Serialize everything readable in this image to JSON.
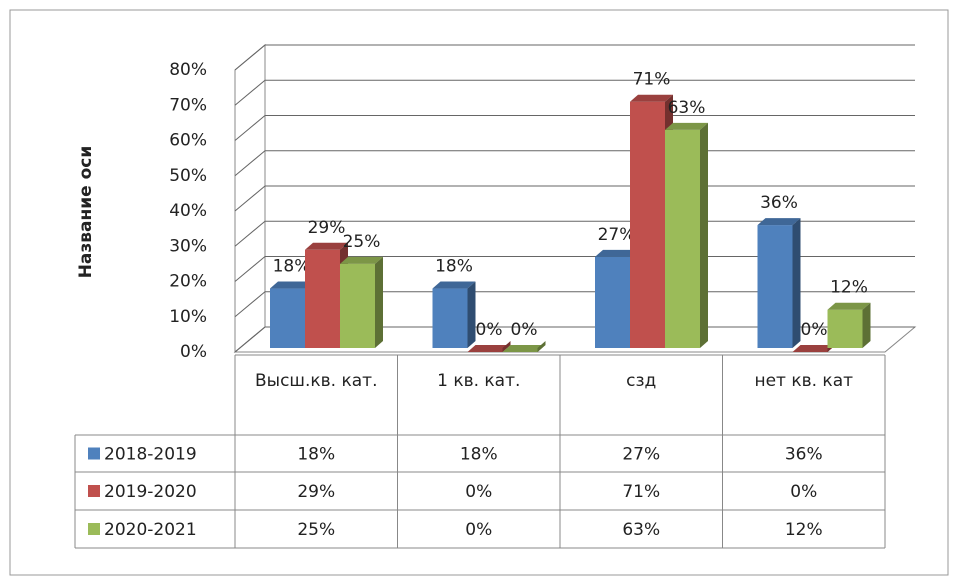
{
  "chart_data": {
    "type": "bar3d",
    "ylabel": "Название оси",
    "categories": [
      "Высш.кв. кат.",
      "1 кв. кат.",
      "сзд",
      "нет кв. кат"
    ],
    "series": [
      {
        "name": "2018-2019",
        "color": "#4f81bd",
        "values": [
          18,
          18,
          27,
          36
        ],
        "value_labels": [
          "18%",
          "18%",
          "27%",
          "36%"
        ]
      },
      {
        "name": "2019-2020",
        "color": "#c0504d",
        "values": [
          29,
          0,
          71,
          0
        ],
        "value_labels": [
          "29%",
          "0%",
          "71%",
          "0%"
        ]
      },
      {
        "name": "2020-2021",
        "color": "#9bbb59",
        "values": [
          25,
          0,
          63,
          12
        ],
        "value_labels": [
          "25%",
          "0%",
          "63%",
          "12%"
        ]
      }
    ],
    "ylim": [
      0,
      80
    ],
    "yticks": [
      {
        "value": 0,
        "label": "0%"
      },
      {
        "value": 10,
        "label": "10%"
      },
      {
        "value": 20,
        "label": "20%"
      },
      {
        "value": 30,
        "label": "30%"
      },
      {
        "value": 40,
        "label": "40%"
      },
      {
        "value": 50,
        "label": "50%"
      },
      {
        "value": 60,
        "label": "60%"
      },
      {
        "value": 70,
        "label": "70%"
      },
      {
        "value": 80,
        "label": "80%"
      }
    ],
    "grid": true,
    "data_table": true
  }
}
